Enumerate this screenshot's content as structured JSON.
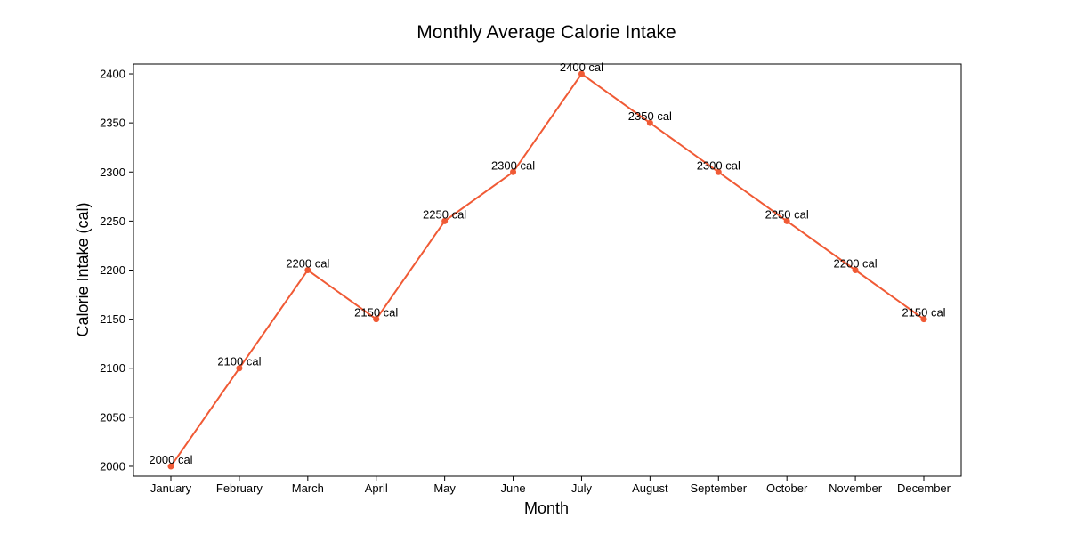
{
  "chart_data": {
    "type": "line",
    "title": "Monthly Average Calorie Intake",
    "xlabel": "Month",
    "ylabel": "Calorie Intake (cal)",
    "categories": [
      "January",
      "February",
      "March",
      "April",
      "May",
      "June",
      "July",
      "August",
      "September",
      "October",
      "November",
      "December"
    ],
    "series": [
      {
        "values": [
          2000,
          2100,
          2200,
          2150,
          2250,
          2300,
          2400,
          2350,
          2300,
          2250,
          2200,
          2150
        ],
        "color": "#f05a35"
      }
    ],
    "data_labels": [
      "2000 cal",
      "2100 cal",
      "2200 cal",
      "2150 cal",
      "2250 cal",
      "2300 cal",
      "2400 cal",
      "2350 cal",
      "2300 cal",
      "2250 cal",
      "2200 cal",
      "2150 cal"
    ],
    "yticks": [
      2000,
      2050,
      2100,
      2150,
      2200,
      2250,
      2300,
      2350,
      2400
    ],
    "ylim": [
      1990,
      2410
    ],
    "grid": false,
    "legend": false
  }
}
